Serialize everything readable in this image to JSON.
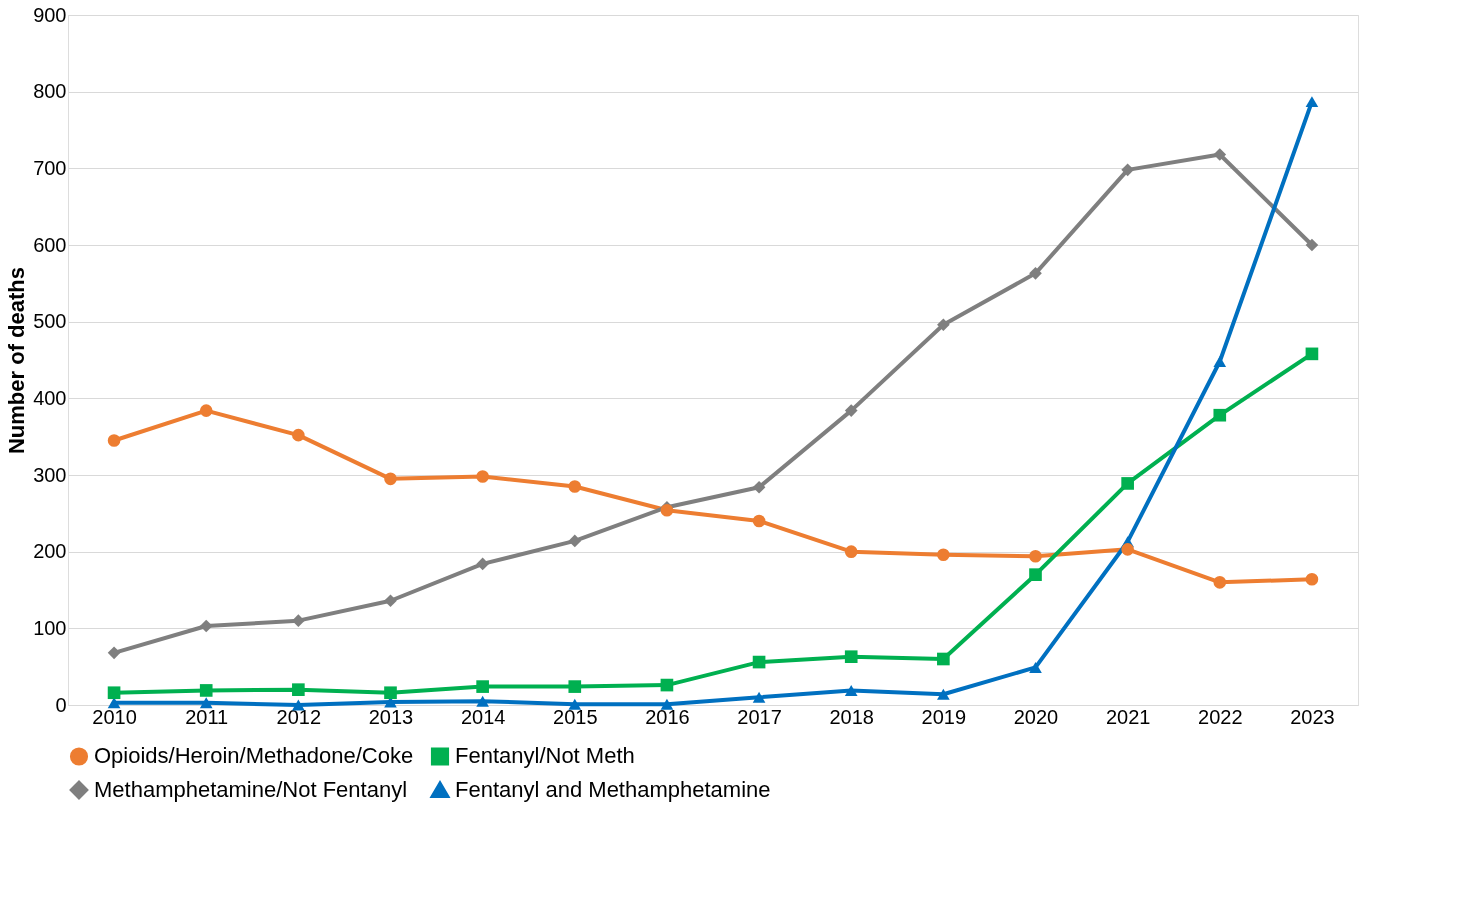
{
  "chart_data": {
    "type": "line",
    "ylabel": "Number of deaths",
    "categories": [
      "2010",
      "2011",
      "2012",
      "2013",
      "2014",
      "2015",
      "2016",
      "2017",
      "2018",
      "2019",
      "2020",
      "2021",
      "2022",
      "2023"
    ],
    "series": [
      {
        "name": "Opioids/Heroin/Methadone/Coke",
        "color": "#ed7d31",
        "marker": "circle",
        "values": [
          345,
          384,
          352,
          295,
          298,
          285,
          254,
          240,
          200,
          196,
          194,
          203,
          160,
          164
        ]
      },
      {
        "name": "Fentanyl/Not Meth",
        "color": "#00b050",
        "marker": "square",
        "values": [
          16,
          19,
          20,
          16,
          24,
          24,
          26,
          56,
          63,
          60,
          170,
          289,
          378,
          458
        ]
      },
      {
        "name": "Methamphetamine/Not Fentanyl",
        "color": "#7f7f7f",
        "marker": "diamond",
        "values": [
          68,
          103,
          110,
          136,
          184,
          214,
          258,
          284,
          384,
          496,
          563,
          698,
          718,
          600
        ]
      },
      {
        "name": "Fentanyl and Methamphetamine",
        "color": "#0070c0",
        "marker": "triangle",
        "values": [
          3,
          3,
          0,
          4,
          5,
          1,
          1,
          10,
          19,
          14,
          49,
          213,
          448,
          787
        ]
      }
    ],
    "ylim": [
      0,
      900
    ],
    "yticks": [
      0,
      100,
      200,
      300,
      400,
      500,
      600,
      700,
      800,
      900
    ],
    "grid": "y",
    "legend": "bottom",
    "line_style": "solid"
  }
}
